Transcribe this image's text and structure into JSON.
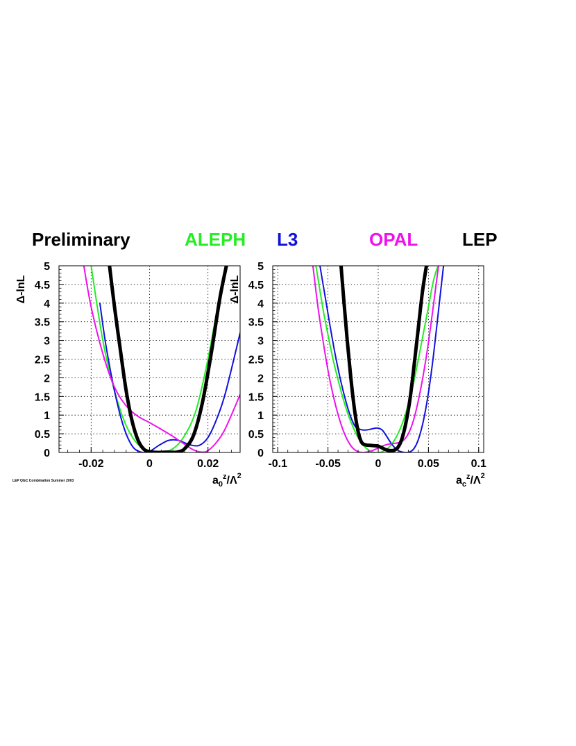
{
  "header": {
    "preliminary": "Preliminary",
    "legend": [
      {
        "name": "ALEPH",
        "color": "#22ee22"
      },
      {
        "name": "L3",
        "color": "#1111dd"
      },
      {
        "name": "OPAL",
        "color": "#ee11ee"
      },
      {
        "name": "LEP",
        "color": "#000000"
      }
    ]
  },
  "footer": {
    "note": "LEP QGC Combination Summer 2003"
  },
  "chart_data": [
    {
      "type": "line",
      "ylabel": "Δ-lnL",
      "xlabel_main": "a",
      "xlabel_sub": "0",
      "xlabel_sup": "z",
      "xlabel_rest": "/Λ",
      "xlabel_sup2": "2",
      "xlim": [
        -0.031,
        0.031
      ],
      "ylim": [
        0,
        5
      ],
      "x_ticks": [
        -0.02,
        0,
        0.02
      ],
      "x_tick_labels": [
        "-0.02",
        "0",
        "0.02"
      ],
      "y_ticks": [
        0,
        0.5,
        1,
        1.5,
        2,
        2.5,
        3,
        3.5,
        4,
        4.5,
        5
      ],
      "y_tick_labels": [
        "0",
        "0.5",
        "1",
        "1.5",
        "2",
        "2.5",
        "3",
        "3.5",
        "4",
        "4.5",
        "5"
      ],
      "grid": true,
      "series": [
        {
          "name": "ALEPH",
          "color": "#22ee22",
          "width": 2,
          "x": [
            -0.02,
            -0.016,
            -0.012,
            -0.008,
            -0.004,
            0,
            0.004,
            0.008,
            0.012,
            0.016,
            0.02,
            0.024,
            0.0265
          ],
          "y": [
            5.0,
            3.0,
            1.65,
            0.72,
            0.22,
            0.04,
            0.01,
            0.1,
            0.45,
            1.15,
            2.5,
            4.2,
            5.0
          ]
        },
        {
          "name": "L3",
          "color": "#1111dd",
          "width": 2,
          "x": [
            -0.017,
            -0.015,
            -0.012,
            -0.009,
            -0.006,
            -0.003,
            0,
            0.003,
            0.006,
            0.008,
            0.01,
            0.012,
            0.014,
            0.017,
            0.02,
            0.023,
            0.026,
            0.031
          ],
          "y": [
            4.0,
            2.9,
            1.65,
            0.72,
            0.18,
            0.01,
            0.03,
            0.18,
            0.31,
            0.34,
            0.32,
            0.26,
            0.2,
            0.19,
            0.4,
            0.9,
            1.6,
            3.2
          ]
        },
        {
          "name": "OPAL",
          "color": "#ee11ee",
          "width": 2,
          "x": [
            -0.0225,
            -0.02,
            -0.016,
            -0.012,
            -0.008,
            -0.004,
            0,
            0.004,
            0.008,
            0.012,
            0.015,
            0.018,
            0.02,
            0.023,
            0.026,
            0.031
          ],
          "y": [
            5.0,
            3.9,
            2.65,
            1.75,
            1.25,
            0.97,
            0.8,
            0.62,
            0.43,
            0.22,
            0.07,
            0.01,
            0.05,
            0.28,
            0.65,
            1.55
          ]
        },
        {
          "name": "LEP",
          "color": "#000000",
          "width": 5,
          "x": [
            -0.0137,
            -0.012,
            -0.01,
            -0.008,
            -0.006,
            -0.004,
            -0.002,
            0,
            0.003,
            0.006,
            0.008,
            0.01,
            0.012,
            0.015,
            0.018,
            0.021,
            0.024,
            0.0263
          ],
          "y": [
            5.0,
            3.9,
            2.75,
            1.65,
            0.85,
            0.34,
            0.09,
            0.02,
            0.0,
            0.01,
            0.0,
            0.02,
            0.1,
            0.45,
            1.3,
            2.6,
            4.1,
            5.0
          ]
        }
      ]
    },
    {
      "type": "line",
      "ylabel": "Δ-lnL",
      "xlabel_main": "a",
      "xlabel_sub": "c",
      "xlabel_sup": "z",
      "xlabel_rest": "/Λ",
      "xlabel_sup2": "2",
      "xlim": [
        -0.105,
        0.105
      ],
      "ylim": [
        0,
        5
      ],
      "x_ticks": [
        -0.1,
        -0.05,
        0,
        0.05,
        0.1
      ],
      "x_tick_labels": [
        "-0.1",
        "-0.05",
        "0",
        "0.05",
        "0.1"
      ],
      "y_ticks": [
        0,
        0.5,
        1,
        1.5,
        2,
        2.5,
        3,
        3.5,
        4,
        4.5,
        5
      ],
      "y_tick_labels": [
        "0",
        "0.5",
        "1",
        "1.5",
        "2",
        "2.5",
        "3",
        "3.5",
        "4",
        "4.5",
        "5"
      ],
      "grid": true,
      "series": [
        {
          "name": "ALEPH",
          "color": "#22ee22",
          "width": 2,
          "x": [
            -0.062,
            -0.055,
            -0.05,
            -0.045,
            -0.04,
            -0.035,
            -0.03,
            -0.025,
            -0.02,
            -0.015,
            -0.01,
            -0.005,
            0,
            0.005,
            0.01,
            0.015,
            0.02,
            0.025,
            0.03,
            0.035,
            0.04,
            0.045,
            0.05,
            0.055,
            0.06,
            0.0655
          ],
          "y": [
            5.0,
            3.85,
            3.15,
            2.5,
            1.95,
            1.45,
            1.02,
            0.68,
            0.4,
            0.2,
            0.07,
            0.01,
            0.0,
            0.03,
            0.12,
            0.28,
            0.52,
            0.85,
            1.3,
            1.85,
            2.5,
            3.2,
            3.9,
            4.6,
            5.0,
            5.0
          ]
        },
        {
          "name": "L3",
          "color": "#1111dd",
          "width": 2,
          "x": [
            -0.058,
            -0.053,
            -0.048,
            -0.043,
            -0.038,
            -0.033,
            -0.028,
            -0.023,
            -0.018,
            -0.013,
            -0.008,
            -0.003,
            0,
            0.004,
            0.008,
            0.012,
            0.016,
            0.02,
            0.024,
            0.028,
            0.032,
            0.036,
            0.04,
            0.045,
            0.05,
            0.055,
            0.06,
            0.065
          ],
          "y": [
            5.0,
            4.2,
            3.4,
            2.65,
            2.0,
            1.45,
            1.0,
            0.7,
            0.62,
            0.6,
            0.62,
            0.65,
            0.65,
            0.6,
            0.45,
            0.28,
            0.14,
            0.05,
            0.01,
            0.0,
            0.02,
            0.12,
            0.35,
            0.85,
            1.6,
            2.6,
            3.8,
            5.0
          ]
        },
        {
          "name": "OPAL",
          "color": "#ee11ee",
          "width": 2,
          "x": [
            -0.065,
            -0.06,
            -0.055,
            -0.05,
            -0.045,
            -0.04,
            -0.035,
            -0.03,
            -0.025,
            -0.02,
            -0.015,
            -0.01,
            -0.005,
            0,
            0.005,
            0.01,
            0.015,
            0.02,
            0.025,
            0.03,
            0.035,
            0.04,
            0.045,
            0.05,
            0.055,
            0.06
          ],
          "y": [
            5.0,
            3.9,
            3.0,
            2.2,
            1.55,
            1.02,
            0.6,
            0.3,
            0.11,
            0.02,
            0.0,
            0.02,
            0.06,
            0.12,
            0.18,
            0.22,
            0.24,
            0.26,
            0.32,
            0.5,
            0.85,
            1.4,
            2.1,
            2.95,
            3.95,
            5.0
          ]
        },
        {
          "name": "LEP",
          "color": "#000000",
          "width": 5,
          "x": [
            -0.037,
            -0.034,
            -0.031,
            -0.028,
            -0.025,
            -0.022,
            -0.019,
            -0.016,
            -0.012,
            -0.008,
            -0.004,
            0,
            0.004,
            0.008,
            0.012,
            0.016,
            0.02,
            0.024,
            0.028,
            0.032,
            0.036,
            0.04,
            0.044,
            0.048
          ],
          "y": [
            5.0,
            4.0,
            3.05,
            2.2,
            1.45,
            0.85,
            0.45,
            0.25,
            0.2,
            0.19,
            0.18,
            0.17,
            0.12,
            0.07,
            0.05,
            0.06,
            0.15,
            0.4,
            0.85,
            1.5,
            2.4,
            3.35,
            4.3,
            5.0
          ]
        }
      ]
    }
  ]
}
